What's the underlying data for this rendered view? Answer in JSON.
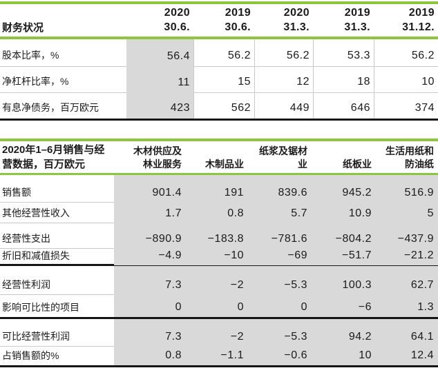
{
  "colors": {
    "accent_green": "#8cc63f",
    "highlight_gray": "#d9d9d9",
    "thin_line": "#c9c9c9",
    "thick_line": "#141414",
    "text": "#1a1a1a"
  },
  "table1": {
    "title": "财务状况",
    "columns": [
      {
        "year": "2020",
        "date": "30.6."
      },
      {
        "year": "2019",
        "date": "30.6."
      },
      {
        "year": "2020",
        "date": "31.3."
      },
      {
        "year": "2019",
        "date": "31.3."
      },
      {
        "year": "2019",
        "date": "31.12."
      }
    ],
    "rows": [
      {
        "label": "股本比率，%",
        "values": [
          "56.4",
          "56.2",
          "56.2",
          "53.3",
          "56.2"
        ]
      },
      {
        "label": "净杠杆比率，%",
        "values": [
          "11",
          "15",
          "12",
          "18",
          "10"
        ]
      },
      {
        "label": "有息净债务，百万欧元",
        "values": [
          "423",
          "562",
          "449",
          "646",
          "374"
        ]
      }
    ]
  },
  "table2": {
    "title": "2020年1–6月销售与经\n营数据，百万欧元",
    "columns": [
      "木材供应及\n林业服务",
      "木制品业",
      "纸浆及锯材\n业",
      "纸板业",
      "生活用纸和\n防油纸"
    ],
    "rows": [
      {
        "label": "销售额",
        "values": [
          "901.4",
          "191",
          "839.6",
          "945.2",
          "516.9"
        ]
      },
      {
        "label": "其他经营性收入",
        "values": [
          "1.7",
          "0.8",
          "5.7",
          "10.9",
          "5"
        ]
      },
      {
        "label": "经营性支出",
        "values": [
          "−890.9",
          "−183.8",
          "−781.6",
          "−804.2",
          "−437.9"
        ]
      },
      {
        "label": "折旧和减值损失",
        "values": [
          "−4.9",
          "−10",
          "−69",
          "−51.7",
          "−21.2"
        ]
      },
      {
        "label": "经营性利润",
        "values": [
          "7.3",
          "−2",
          "−5.3",
          "100.3",
          "62.7"
        ]
      },
      {
        "label": "影响可比性的项目",
        "values": [
          "0",
          "0",
          "0",
          "−6",
          "1.3"
        ]
      },
      {
        "label": "可比经营性利润",
        "values": [
          "7.3",
          "−2",
          "−5.3",
          "94.2",
          "64.1"
        ]
      },
      {
        "label": "占销售额的%",
        "values": [
          "0.8",
          "−1.1",
          "−0.6",
          "10",
          "12.4"
        ]
      }
    ]
  }
}
